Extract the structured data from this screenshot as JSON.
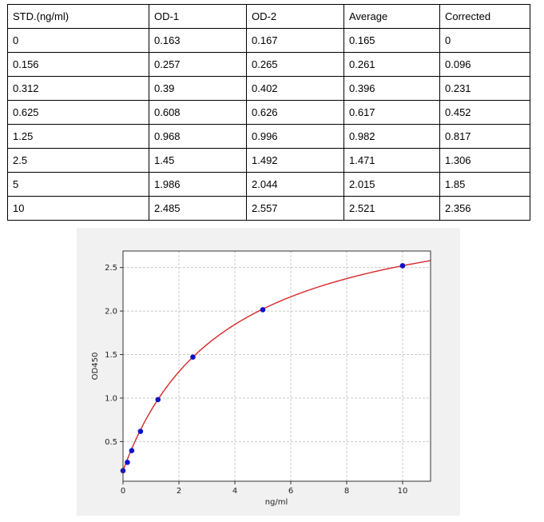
{
  "table": {
    "headers": [
      "STD.(ng/ml)",
      "OD-1",
      "OD-2",
      "Average",
      "Corrected"
    ],
    "rows": [
      [
        "0",
        "0.163",
        "0.167",
        "0.165",
        "0"
      ],
      [
        "0.156",
        "0.257",
        "0.265",
        "0.261",
        "0.096"
      ],
      [
        "0.312",
        "0.39",
        "0.402",
        "0.396",
        "0.231"
      ],
      [
        "0.625",
        "0.608",
        "0.626",
        "0.617",
        "0.452"
      ],
      [
        "1.25",
        "0.968",
        "0.996",
        "0.982",
        "0.817"
      ],
      [
        "2.5",
        "1.45",
        "1.492",
        "1.471",
        "1.306"
      ],
      [
        "5",
        "1.986",
        "2.044",
        "2.015",
        "1.85"
      ],
      [
        "10",
        "2.485",
        "2.557",
        "2.521",
        "2.356"
      ]
    ]
  },
  "chart_data": {
    "type": "scatter",
    "title": "",
    "xlabel": "ng/ml",
    "ylabel": "OD450",
    "xlim": [
      0,
      11
    ],
    "ylim": [
      0.044,
      2.69
    ],
    "xticks": [
      0,
      2,
      4,
      6,
      8,
      10
    ],
    "yticks": [
      0.5,
      1.0,
      1.5,
      2.0,
      2.5
    ],
    "ytick_labels": [
      "0.5",
      "1.0",
      "1.5",
      "2.0",
      "2.5"
    ],
    "grid": true,
    "series": [
      {
        "x": [
          0,
          0.156,
          0.312,
          0.625,
          1.25,
          2.5,
          5,
          10
        ],
        "y": [
          0.165,
          0.261,
          0.396,
          0.617,
          0.982,
          1.471,
          2.015,
          2.521
        ],
        "marker_color": "#1010c8",
        "fit_line_color": "#d62728"
      }
    ]
  }
}
